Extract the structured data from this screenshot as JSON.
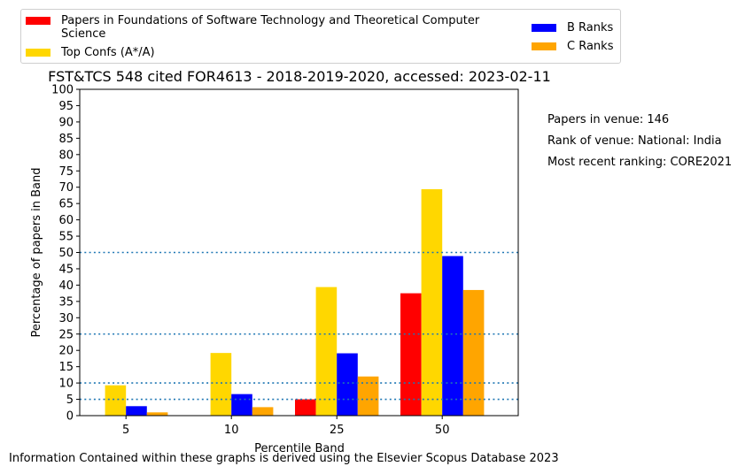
{
  "chart_data": {
    "type": "bar",
    "title": "FST&TCS 548 cited FOR4613 - 2018-2019-2020, accessed: 2023-02-11",
    "xlabel": "Percentile Band",
    "ylabel": "Percentage of papers in Band",
    "categories": [
      "5",
      "10",
      "25",
      "50"
    ],
    "ylim": [
      0,
      100
    ],
    "yticks": [
      "0",
      "5",
      "10",
      "15",
      "20",
      "25",
      "30",
      "35",
      "40",
      "45",
      "50",
      "55",
      "60",
      "65",
      "70",
      "75",
      "80",
      "85",
      "90",
      "95",
      "100"
    ],
    "reference_lines": [
      5,
      10,
      25,
      50
    ],
    "grid": false,
    "legend_position": "top",
    "series": [
      {
        "name": "Papers in Foundations of Software Technology and Theoretical Computer Science",
        "color": "#ff0000",
        "values": [
          0,
          0,
          5,
          37.5
        ]
      },
      {
        "name": "Top Confs (A*/A)",
        "color": "#ffd700",
        "values": [
          9.3,
          19.2,
          39.4,
          69.4
        ]
      },
      {
        "name": "B Ranks",
        "color": "#0000ff",
        "values": [
          2.9,
          6.6,
          19.1,
          48.9
        ]
      },
      {
        "name": "C Ranks",
        "color": "#ffa500",
        "values": [
          1.0,
          2.6,
          12.0,
          38.5
        ]
      }
    ]
  },
  "legend": {
    "series_1": "Papers in Foundations of Software Technology and Theoretical Computer Science",
    "series_2": "Top Confs (A*/A)",
    "series_3": "B Ranks",
    "series_4": "C Ranks"
  },
  "info": {
    "papers_in_venue": "Papers in venue: 146",
    "rank_of_venue": "Rank of venue: National: India",
    "most_recent_ranking": "Most recent ranking: CORE2021"
  },
  "footer": "Information Contained within these graphs is derived using the Elsevier Scopus Database 2023",
  "colors": {
    "reference_line": "#1f77b4"
  }
}
